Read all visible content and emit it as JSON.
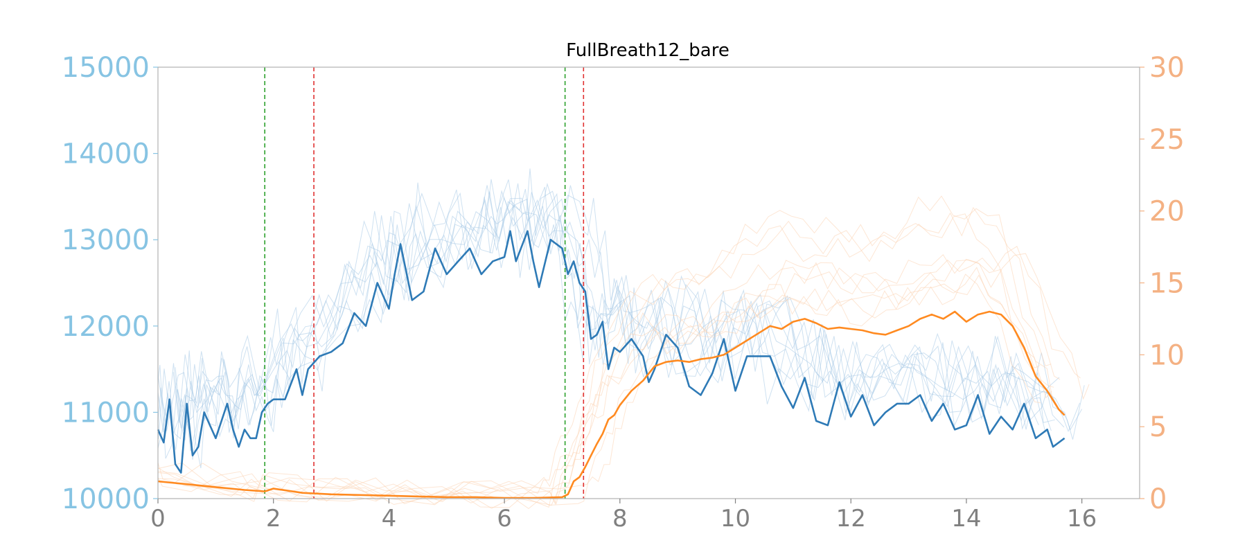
{
  "chart_data": {
    "type": "line",
    "title": "FullBreath12_bare",
    "xlim": [
      0,
      17
    ],
    "ylim_left": [
      10000,
      15000
    ],
    "ylim_right": [
      0,
      30
    ],
    "xticks": [
      "0",
      "2",
      "4",
      "6",
      "8",
      "10",
      "12",
      "14",
      "16"
    ],
    "yticks_left": [
      "10000",
      "11000",
      "12000",
      "13000",
      "14000",
      "15000"
    ],
    "yticks_right": [
      "0",
      "5",
      "10",
      "15",
      "20",
      "25",
      "30"
    ],
    "grid": false,
    "colors": {
      "left_axis": "#87c4e3",
      "right_axis": "#f4b183",
      "x_axis": "#808080",
      "blue_series": "#2e7ab6",
      "orange_series": "#ff8a20",
      "green_marker": "#2ca02c",
      "red_marker": "#e03030"
    },
    "vertical_lines": [
      {
        "x": 1.85,
        "color": "green"
      },
      {
        "x": 2.7,
        "color": "red"
      },
      {
        "x": 7.05,
        "color": "green"
      },
      {
        "x": 7.37,
        "color": "red"
      }
    ],
    "series": [
      {
        "axis": "left",
        "x": [
          0,
          0.1,
          0.2,
          0.3,
          0.4,
          0.5,
          0.6,
          0.7,
          0.8,
          0.9,
          1.0,
          1.1,
          1.2,
          1.3,
          1.4,
          1.5,
          1.6,
          1.7,
          1.8,
          1.9,
          2.0,
          2.2,
          2.4,
          2.5,
          2.6,
          2.8,
          3.0,
          3.2,
          3.4,
          3.6,
          3.8,
          4.0,
          4.1,
          4.2,
          4.4,
          4.6,
          4.8,
          5.0,
          5.2,
          5.4,
          5.6,
          5.8,
          6.0,
          6.1,
          6.2,
          6.4,
          6.5,
          6.6,
          6.8,
          7.0,
          7.1,
          7.2,
          7.3,
          7.4,
          7.5,
          7.6,
          7.7,
          7.8,
          7.9,
          8.0,
          8.2,
          8.4,
          8.5,
          8.6,
          8.8,
          9.0,
          9.2,
          9.4,
          9.6,
          9.8,
          10.0,
          10.2,
          10.4,
          10.6,
          10.8,
          11.0,
          11.2,
          11.4,
          11.6,
          11.8,
          12.0,
          12.2,
          12.4,
          12.6,
          12.8,
          13.0,
          13.2,
          13.4,
          13.6,
          13.8,
          14.0,
          14.2,
          14.4,
          14.6,
          14.8,
          15.0,
          15.2,
          15.4,
          15.5,
          15.7
        ],
        "y": [
          10800,
          10650,
          11150,
          10400,
          10300,
          11100,
          10500,
          10600,
          11000,
          10850,
          10700,
          10900,
          11100,
          10800,
          10600,
          10800,
          10700,
          10700,
          11000,
          11100,
          11150,
          11150,
          11500,
          11200,
          11500,
          11650,
          11700,
          11800,
          12150,
          12000,
          12500,
          12200,
          12600,
          12950,
          12300,
          12400,
          12900,
          12600,
          12750,
          12900,
          12600,
          12750,
          12800,
          13100,
          12750,
          13100,
          12750,
          12450,
          13000,
          12900,
          12600,
          12750,
          12500,
          12400,
          11850,
          11900,
          12050,
          11500,
          11750,
          11700,
          11850,
          11650,
          11350,
          11500,
          11900,
          11750,
          11300,
          11200,
          11450,
          11850,
          11250,
          11650,
          11650,
          11650,
          11300,
          11050,
          11400,
          10900,
          10850,
          11350,
          10950,
          11200,
          10850,
          11000,
          11100,
          11100,
          11200,
          10900,
          11100,
          10800,
          10850,
          11200,
          10750,
          10950,
          10800,
          11100,
          10700,
          10800,
          10600,
          10700
        ]
      },
      {
        "axis": "right",
        "x": [
          0,
          0.5,
          1.0,
          1.5,
          1.85,
          2.0,
          2.5,
          3.0,
          3.5,
          4.0,
          4.5,
          5.0,
          5.5,
          6.0,
          6.5,
          7.0,
          7.1,
          7.2,
          7.3,
          7.4,
          7.5,
          7.6,
          7.7,
          7.8,
          7.9,
          8.0,
          8.2,
          8.4,
          8.6,
          8.8,
          9.0,
          9.2,
          9.4,
          9.6,
          9.8,
          10.0,
          10.2,
          10.4,
          10.6,
          10.8,
          11.0,
          11.2,
          11.4,
          11.6,
          11.8,
          12.0,
          12.2,
          12.4,
          12.6,
          12.8,
          13.0,
          13.2,
          13.4,
          13.6,
          13.8,
          14.0,
          14.2,
          14.4,
          14.6,
          14.8,
          15.0,
          15.2,
          15.4,
          15.6,
          15.7
        ],
        "y": [
          1.2,
          1.0,
          0.8,
          0.6,
          0.5,
          0.7,
          0.4,
          0.3,
          0.25,
          0.2,
          0.15,
          0.1,
          0.1,
          0.05,
          0.05,
          0.1,
          0.3,
          1.2,
          1.5,
          2.2,
          3.0,
          3.8,
          4.5,
          5.5,
          5.8,
          6.5,
          7.5,
          8.2,
          9.2,
          9.5,
          9.6,
          9.5,
          9.7,
          9.8,
          10.0,
          10.5,
          11.0,
          11.5,
          12.0,
          11.8,
          12.3,
          12.5,
          12.2,
          11.8,
          11.9,
          11.8,
          11.7,
          11.5,
          11.4,
          11.7,
          12.0,
          12.5,
          12.8,
          12.5,
          13.0,
          12.3,
          12.8,
          13.0,
          12.8,
          12.0,
          10.5,
          8.5,
          7.5,
          6.2,
          5.8
        ]
      }
    ]
  }
}
